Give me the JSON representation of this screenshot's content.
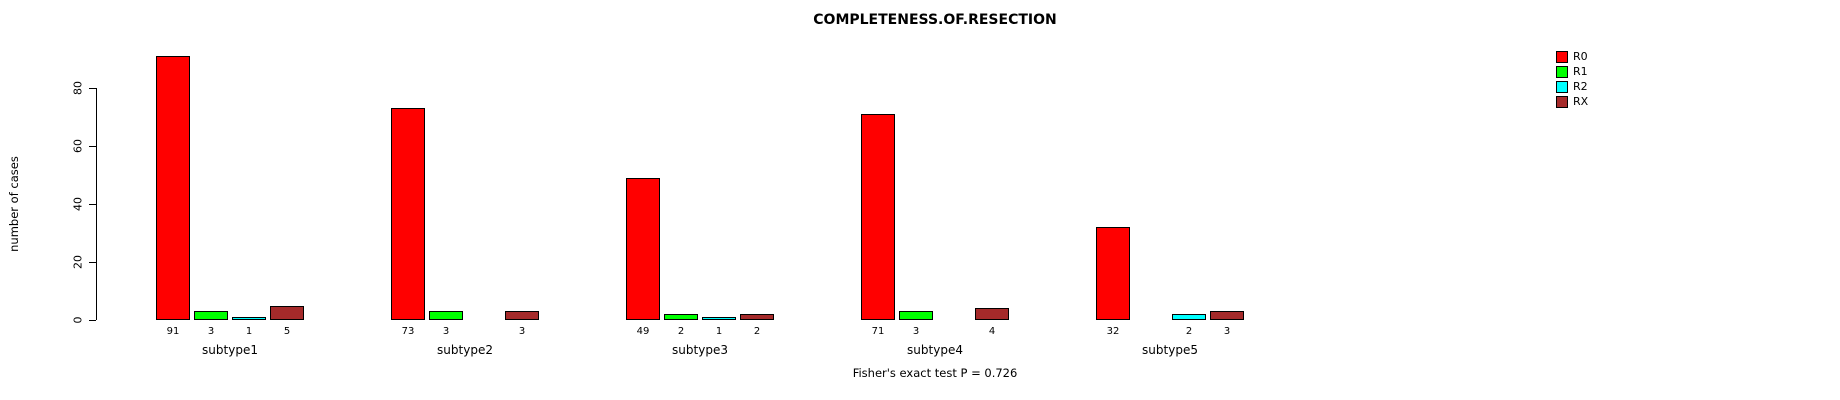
{
  "chart_data": {
    "type": "bar",
    "title": "COMPLETENESS.OF.RESECTION",
    "ylabel": "number of cases",
    "annotation": "Fisher's exact test P = 0.726",
    "categories": [
      "subtype1",
      "subtype2",
      "subtype3",
      "subtype4",
      "subtype5"
    ],
    "series": [
      {
        "name": "R0",
        "color": "#FF0000",
        "values": [
          91,
          73,
          49,
          71,
          32
        ]
      },
      {
        "name": "R1",
        "color": "#00FF00",
        "values": [
          3,
          3,
          2,
          3,
          0
        ]
      },
      {
        "name": "R2",
        "color": "#00FFFF",
        "values": [
          1,
          0,
          1,
          0,
          2
        ]
      },
      {
        "name": "RX",
        "color": "#A52A2A",
        "values": [
          5,
          3,
          2,
          4,
          3
        ]
      }
    ],
    "yticks": [
      0,
      20,
      40,
      60,
      80
    ],
    "ylim": [
      0,
      95
    ],
    "grid": false,
    "legend_position": "top-right",
    "bar_border_color": "#000000",
    "show_zero_bars": false
  }
}
